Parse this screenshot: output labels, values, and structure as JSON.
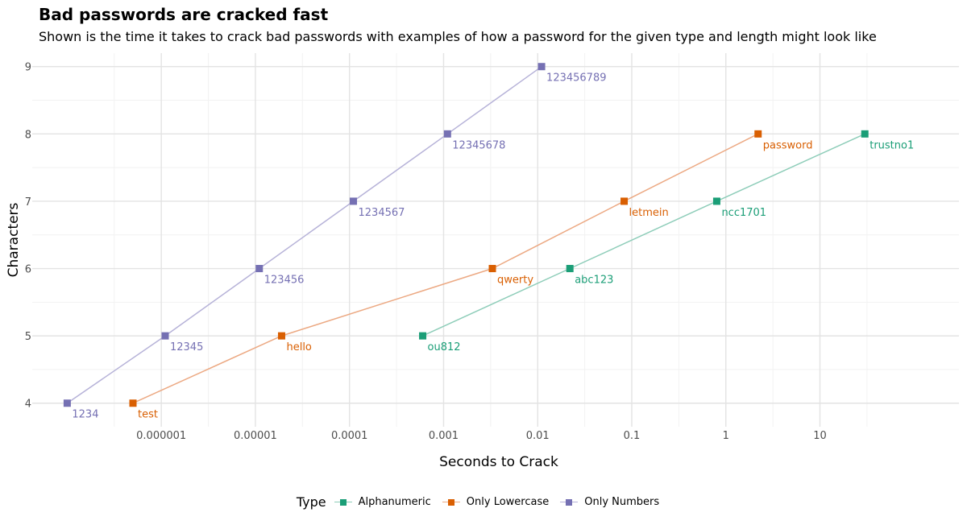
{
  "chart_data": {
    "type": "line",
    "title": "Bad passwords are cracked fast",
    "subtitle": "Shown is the time it takes to crack bad passwords with examples of how a password for the given type and length might look like",
    "xlabel": "Seconds to Crack",
    "ylabel": "Characters",
    "x_scale": "log10",
    "xlim": [
      4.25e-08,
      300
    ],
    "ylim": [
      3.65,
      9.2
    ],
    "x_ticks": [
      {
        "value": 1e-06,
        "label": "0.000001"
      },
      {
        "value": 1e-05,
        "label": "0.00001"
      },
      {
        "value": 0.0001,
        "label": "0.0001"
      },
      {
        "value": 0.001,
        "label": "0.001"
      },
      {
        "value": 0.01,
        "label": "0.01"
      },
      {
        "value": 0.1,
        "label": "0.1"
      },
      {
        "value": 1,
        "label": "1"
      },
      {
        "value": 10,
        "label": "10"
      }
    ],
    "y_ticks": [
      4,
      5,
      6,
      7,
      8,
      9
    ],
    "grid": true,
    "legend_title": "Type",
    "legend_position": "bottom",
    "series": [
      {
        "name": "Alphanumeric",
        "color": "#1b9e77",
        "line_color": "#8ecdb9",
        "points": [
          {
            "x": 0.0006,
            "y": 5,
            "label": "ou812"
          },
          {
            "x": 0.022,
            "y": 6,
            "label": "abc123"
          },
          {
            "x": 0.8,
            "y": 7,
            "label": "ncc1701"
          },
          {
            "x": 30,
            "y": 8,
            "label": "trustno1"
          }
        ]
      },
      {
        "name": "Only Lowercase",
        "color": "#d95f02",
        "line_color": "#eca983",
        "points": [
          {
            "x": 5e-07,
            "y": 4,
            "label": "test"
          },
          {
            "x": 1.9e-05,
            "y": 5,
            "label": "hello"
          },
          {
            "x": 0.0033,
            "y": 6,
            "label": "qwerty"
          },
          {
            "x": 0.083,
            "y": 7,
            "label": "letmein"
          },
          {
            "x": 2.2,
            "y": 8,
            "label": "password"
          }
        ]
      },
      {
        "name": "Only Numbers",
        "color": "#7570b3",
        "line_color": "#b6b2d8",
        "points": [
          {
            "x": 1e-07,
            "y": 4,
            "label": "1234"
          },
          {
            "x": 1.1e-06,
            "y": 5,
            "label": "12345"
          },
          {
            "x": 1.1e-05,
            "y": 6,
            "label": "123456"
          },
          {
            "x": 0.00011,
            "y": 7,
            "label": "1234567"
          },
          {
            "x": 0.0011,
            "y": 8,
            "label": "12345678"
          },
          {
            "x": 0.011,
            "y": 9,
            "label": "123456789"
          }
        ]
      }
    ]
  }
}
